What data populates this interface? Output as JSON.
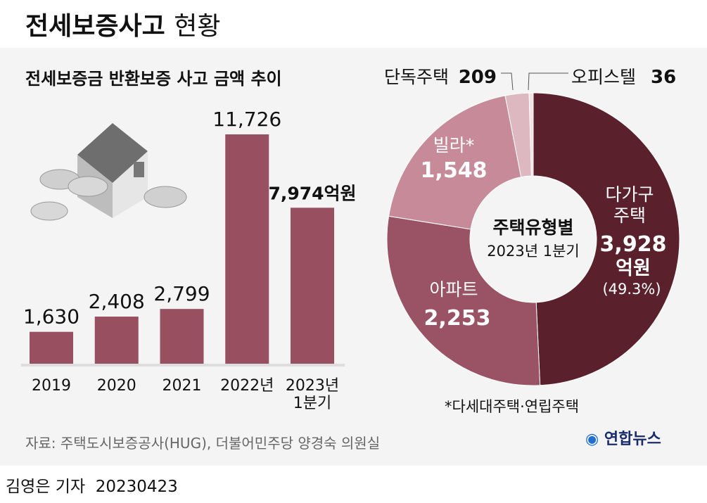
{
  "title": {
    "main": "전세보증사고",
    "sub": "현황"
  },
  "chart_data": [
    {
      "type": "bar",
      "title": "전세보증금 반환보증 사고 금액 추이",
      "categories": [
        "2019",
        "2020",
        "2021",
        "2022년",
        "2023년 1분기"
      ],
      "category_lines": [
        [
          "2019"
        ],
        [
          "2020"
        ],
        [
          "2021"
        ],
        [
          "2022년"
        ],
        [
          "2023년",
          "1분기"
        ]
      ],
      "values": [
        1630,
        2408,
        2799,
        11726,
        7974
      ],
      "value_labels": [
        "1,630",
        "2,408",
        "2,799",
        "11,726",
        "7,974억원"
      ],
      "unit": "억원",
      "color": "#984f60"
    },
    {
      "type": "pie",
      "title": "주택유형별",
      "subtitle": "2023년 1분기",
      "total": 7974,
      "slices": [
        {
          "name": "다가구 주택",
          "value": 3928,
          "label": "3,928",
          "unit": "억원",
          "percent": "(49.3%)",
          "color": "#5a212d"
        },
        {
          "name": "아파트",
          "value": 2253,
          "label": "2,253",
          "color": "#9a5265"
        },
        {
          "name": "빌라*",
          "value": 1548,
          "label": "1,548",
          "color": "#c68a99"
        },
        {
          "name": "단독주택",
          "value": 209,
          "label": "209",
          "color": "#deb8c1"
        },
        {
          "name": "오피스텔",
          "value": 36,
          "label": "36",
          "color": "#f2e2e6"
        }
      ],
      "footnote": "*다세대주택·연립주택"
    }
  ],
  "source": "자료: 주택도시보증공사(HUG), 더불어민주당 양경숙 의원실",
  "logo": "연합뉴스",
  "byline": "김영은 기자  20230423"
}
